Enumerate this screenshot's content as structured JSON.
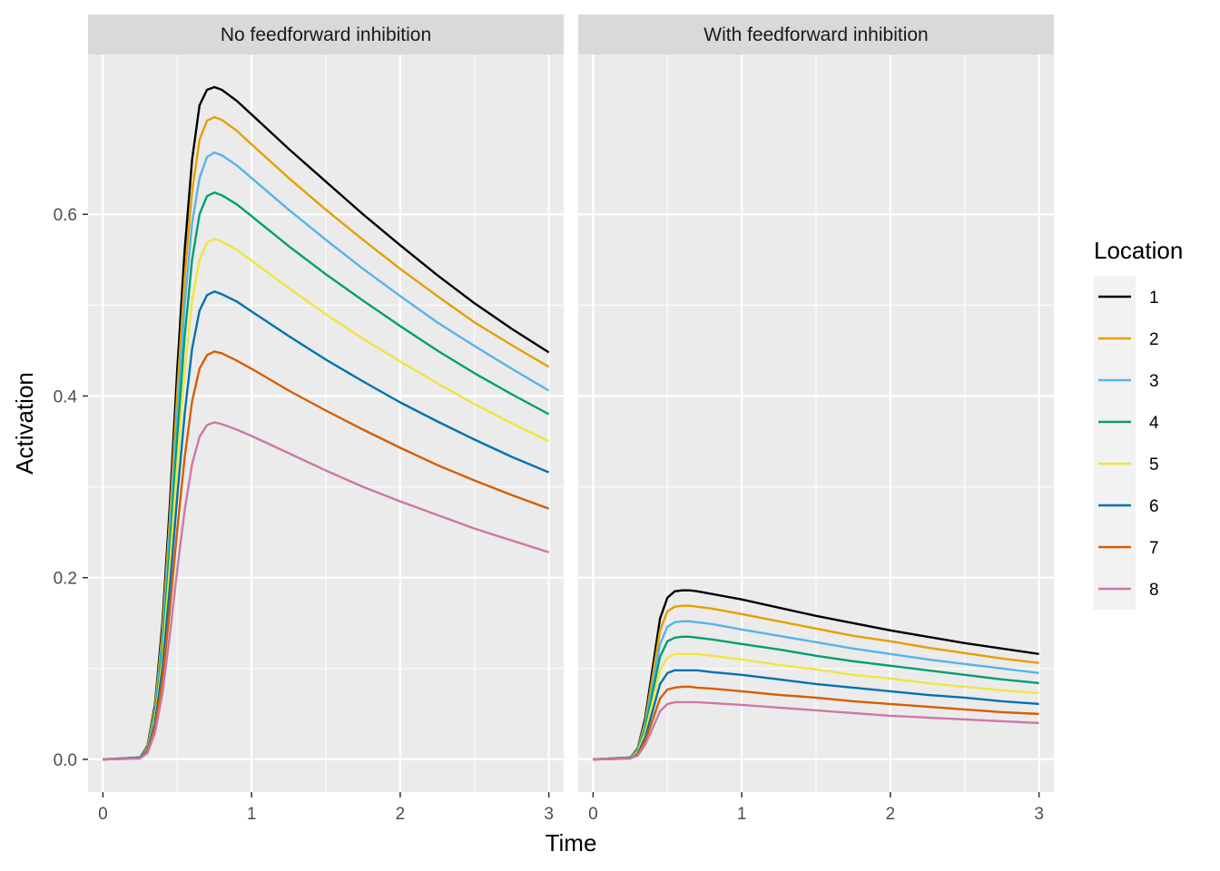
{
  "chart_data": {
    "type": "line",
    "xlabel": "Time",
    "ylabel": "Activation",
    "xlim": [
      -0.1,
      3.1
    ],
    "ylim": [
      -0.036,
      0.776
    ],
    "x_ticks": [
      0,
      1,
      2,
      3
    ],
    "y_ticks": [
      0.0,
      0.2,
      0.4,
      0.6
    ],
    "x_tick_labels": [
      "0",
      "1",
      "2",
      "3"
    ],
    "y_tick_labels": [
      "0.0",
      "0.2",
      "0.4",
      "0.6"
    ],
    "grid": true,
    "legend": {
      "title": "Location",
      "placement": "right",
      "entries": [
        {
          "label": "1",
          "color": "#000000"
        },
        {
          "label": "2",
          "color": "#E69F00"
        },
        {
          "label": "3",
          "color": "#56B4E9"
        },
        {
          "label": "4",
          "color": "#009E73"
        },
        {
          "label": "5",
          "color": "#F0E442"
        },
        {
          "label": "6",
          "color": "#0072B2"
        },
        {
          "label": "7",
          "color": "#D55E00"
        },
        {
          "label": "8",
          "color": "#CC79A7"
        }
      ]
    },
    "panels": [
      {
        "title": "No feedforward inhibition",
        "x": [
          0,
          0.25,
          0.3,
          0.35,
          0.4,
          0.45,
          0.5,
          0.55,
          0.6,
          0.65,
          0.7,
          0.75,
          0.8,
          0.9,
          1.0,
          1.25,
          1.5,
          1.75,
          2.0,
          2.25,
          2.5,
          2.75,
          3.0
        ],
        "series": [
          {
            "name": "1",
            "values": [
              0,
              0.002,
              0.015,
              0.06,
              0.15,
              0.28,
              0.43,
              0.56,
              0.66,
              0.72,
              0.737,
              0.74,
              0.737,
              0.725,
              0.71,
              0.672,
              0.636,
              0.6,
              0.566,
              0.533,
              0.502,
              0.474,
              0.448
            ]
          },
          {
            "name": "2",
            "values": [
              0,
              0.002,
              0.014,
              0.056,
              0.14,
              0.265,
              0.405,
              0.53,
              0.625,
              0.682,
              0.703,
              0.707,
              0.704,
              0.692,
              0.677,
              0.64,
              0.605,
              0.572,
              0.54,
              0.51,
              0.481,
              0.456,
              0.432
            ]
          },
          {
            "name": "3",
            "values": [
              0,
              0.002,
              0.013,
              0.052,
              0.13,
              0.25,
              0.38,
              0.5,
              0.59,
              0.64,
              0.663,
              0.668,
              0.665,
              0.654,
              0.64,
              0.605,
              0.572,
              0.54,
              0.51,
              0.481,
              0.455,
              0.43,
              0.406
            ]
          },
          {
            "name": "4",
            "values": [
              0,
              0.002,
              0.012,
              0.048,
              0.12,
              0.23,
              0.355,
              0.465,
              0.55,
              0.6,
              0.62,
              0.624,
              0.621,
              0.611,
              0.598,
              0.565,
              0.534,
              0.505,
              0.477,
              0.45,
              0.425,
              0.402,
              0.38
            ]
          },
          {
            "name": "5",
            "values": [
              0,
              0.002,
              0.011,
              0.044,
              0.11,
              0.212,
              0.325,
              0.427,
              0.505,
              0.55,
              0.569,
              0.573,
              0.57,
              0.561,
              0.549,
              0.519,
              0.49,
              0.463,
              0.438,
              0.414,
              0.391,
              0.37,
              0.35
            ]
          },
          {
            "name": "6",
            "values": [
              0,
              0.002,
              0.01,
              0.04,
              0.1,
              0.19,
              0.29,
              0.38,
              0.452,
              0.494,
              0.511,
              0.515,
              0.512,
              0.504,
              0.493,
              0.466,
              0.44,
              0.416,
              0.393,
              0.372,
              0.352,
              0.333,
              0.316
            ]
          },
          {
            "name": "7",
            "values": [
              0,
              0.001,
              0.009,
              0.035,
              0.087,
              0.165,
              0.253,
              0.332,
              0.394,
              0.43,
              0.445,
              0.449,
              0.447,
              0.439,
              0.43,
              0.406,
              0.384,
              0.363,
              0.343,
              0.324,
              0.307,
              0.291,
              0.276
            ]
          },
          {
            "name": "8",
            "values": [
              0,
              0.001,
              0.007,
              0.029,
              0.072,
              0.137,
              0.209,
              0.274,
              0.325,
              0.355,
              0.368,
              0.371,
              0.369,
              0.363,
              0.356,
              0.337,
              0.318,
              0.3,
              0.284,
              0.269,
              0.254,
              0.241,
              0.228
            ]
          }
        ]
      },
      {
        "title": "With feedforward inhibition",
        "x": [
          0,
          0.25,
          0.3,
          0.35,
          0.4,
          0.45,
          0.5,
          0.55,
          0.6,
          0.65,
          0.7,
          0.8,
          1.0,
          1.25,
          1.5,
          1.75,
          2.0,
          2.25,
          2.5,
          2.75,
          3.0
        ],
        "series": [
          {
            "name": "1",
            "values": [
              0,
              0.002,
              0.012,
              0.045,
              0.1,
              0.155,
              0.178,
              0.185,
              0.186,
              0.186,
              0.185,
              0.182,
              0.176,
              0.167,
              0.158,
              0.15,
              0.142,
              0.135,
              0.128,
              0.122,
              0.116
            ]
          },
          {
            "name": "2",
            "values": [
              0,
              0.002,
              0.011,
              0.041,
              0.091,
              0.142,
              0.163,
              0.168,
              0.169,
              0.169,
              0.168,
              0.166,
              0.16,
              0.152,
              0.144,
              0.136,
              0.13,
              0.123,
              0.117,
              0.111,
              0.106
            ]
          },
          {
            "name": "3",
            "values": [
              0,
              0.002,
              0.01,
              0.037,
              0.082,
              0.127,
              0.146,
              0.151,
              0.152,
              0.152,
              0.151,
              0.149,
              0.143,
              0.136,
              0.129,
              0.122,
              0.116,
              0.11,
              0.105,
              0.1,
              0.095
            ]
          },
          {
            "name": "4",
            "values": [
              0,
              0.002,
              0.009,
              0.033,
              0.073,
              0.113,
              0.13,
              0.134,
              0.135,
              0.135,
              0.134,
              0.132,
              0.127,
              0.121,
              0.114,
              0.108,
              0.103,
              0.098,
              0.093,
              0.088,
              0.084
            ]
          },
          {
            "name": "5",
            "values": [
              0,
              0.001,
              0.008,
              0.029,
              0.063,
              0.098,
              0.112,
              0.116,
              0.116,
              0.116,
              0.116,
              0.114,
              0.11,
              0.104,
              0.099,
              0.093,
              0.089,
              0.084,
              0.08,
              0.076,
              0.073
            ]
          },
          {
            "name": "6",
            "values": [
              0,
              0.001,
              0.006,
              0.024,
              0.053,
              0.083,
              0.095,
              0.098,
              0.098,
              0.098,
              0.098,
              0.096,
              0.093,
              0.088,
              0.083,
              0.079,
              0.075,
              0.071,
              0.068,
              0.064,
              0.061
            ]
          },
          {
            "name": "7",
            "values": [
              0,
              0.001,
              0.005,
              0.02,
              0.043,
              0.067,
              0.077,
              0.079,
              0.08,
              0.08,
              0.079,
              0.078,
              0.075,
              0.071,
              0.068,
              0.064,
              0.061,
              0.058,
              0.055,
              0.052,
              0.05
            ]
          },
          {
            "name": "8",
            "values": [
              0,
              0.001,
              0.004,
              0.016,
              0.034,
              0.053,
              0.061,
              0.063,
              0.063,
              0.063,
              0.063,
              0.062,
              0.06,
              0.057,
              0.054,
              0.051,
              0.048,
              0.046,
              0.044,
              0.042,
              0.04
            ]
          }
        ]
      }
    ]
  }
}
